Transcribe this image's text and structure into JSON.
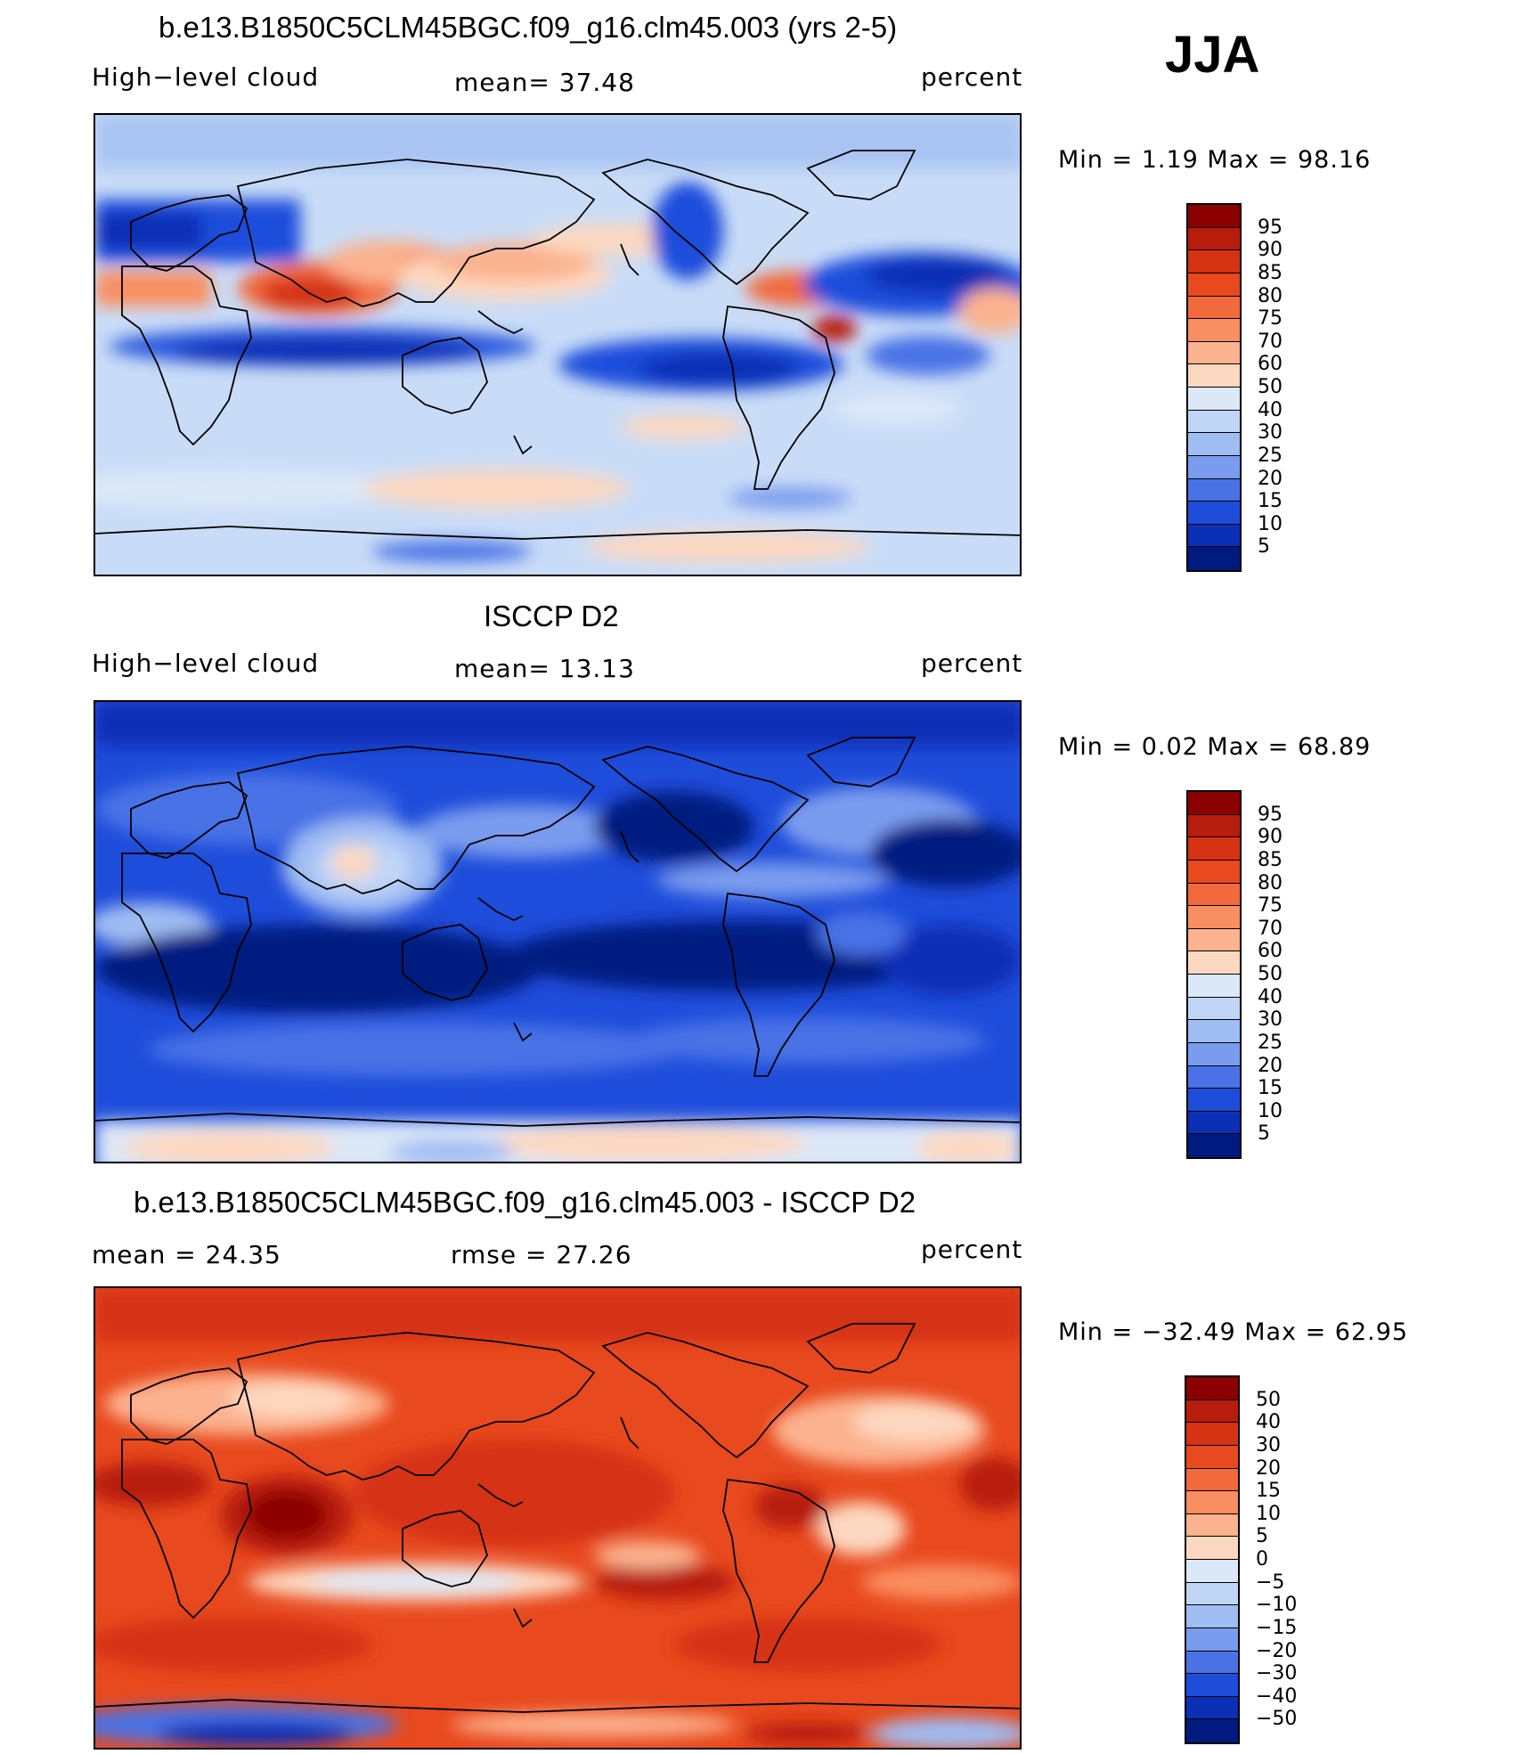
{
  "season": "JJA",
  "panels": [
    {
      "title": "b.e13.B1850C5CLM45BGC.f09_g16.clm45.003 (yrs 2-5)",
      "left_label": "High−level cloud",
      "center_label": "mean=   37.48",
      "right_label": "percent",
      "minmax": "Min =    1.19 Max =   98.16",
      "colorbar": {
        "labels": [
          "95",
          "90",
          "85",
          "80",
          "75",
          "70",
          "60",
          "50",
          "40",
          "30",
          "25",
          "20",
          "15",
          "10",
          "5"
        ],
        "colors": [
          "#8b0000",
          "#b71c0c",
          "#d63214",
          "#e8491e",
          "#f26a3c",
          "#f98f60",
          "#fbb28e",
          "#fdd8c0",
          "#dce8f8",
          "#c1d6f6",
          "#9fbcf3",
          "#7a9cee",
          "#4a72e6",
          "#1f4ddb",
          "#0b2fb5",
          "#001a80"
        ]
      }
    },
    {
      "title": "ISCCP D2",
      "left_label": "High−level cloud",
      "center_label": "mean=   13.13",
      "right_label": "percent",
      "minmax": "Min =    0.02 Max =   68.89",
      "colorbar": {
        "labels": [
          "95",
          "90",
          "85",
          "80",
          "75",
          "70",
          "60",
          "50",
          "40",
          "30",
          "25",
          "20",
          "15",
          "10",
          "5"
        ],
        "colors": [
          "#8b0000",
          "#b71c0c",
          "#d63214",
          "#e8491e",
          "#f26a3c",
          "#f98f60",
          "#fbb28e",
          "#fdd8c0",
          "#dce8f8",
          "#c1d6f6",
          "#9fbcf3",
          "#7a9cee",
          "#4a72e6",
          "#1f4ddb",
          "#0b2fb5",
          "#001a80"
        ]
      }
    },
    {
      "title": "b.e13.B1850C5CLM45BGC.f09_g16.clm45.003 - ISCCP D2",
      "left_label": "mean =   24.35",
      "center_label": "rmse =   27.26",
      "right_label": "percent",
      "minmax": "Min = −32.49 Max =   62.95",
      "colorbar": {
        "labels": [
          "50",
          "40",
          "30",
          "20",
          "15",
          "10",
          "5",
          "0",
          "−5",
          "−10",
          "−15",
          "−20",
          "−30",
          "−40",
          "−50"
        ],
        "colors": [
          "#8b0000",
          "#b71c0c",
          "#d63214",
          "#e8491e",
          "#f26a3c",
          "#f98f60",
          "#fbb28e",
          "#fdd8c0",
          "#dce8f8",
          "#c1d6f6",
          "#9fbcf3",
          "#7a9cee",
          "#4a72e6",
          "#1f4ddb",
          "#0b2fb5",
          "#001a80"
        ]
      }
    }
  ]
}
